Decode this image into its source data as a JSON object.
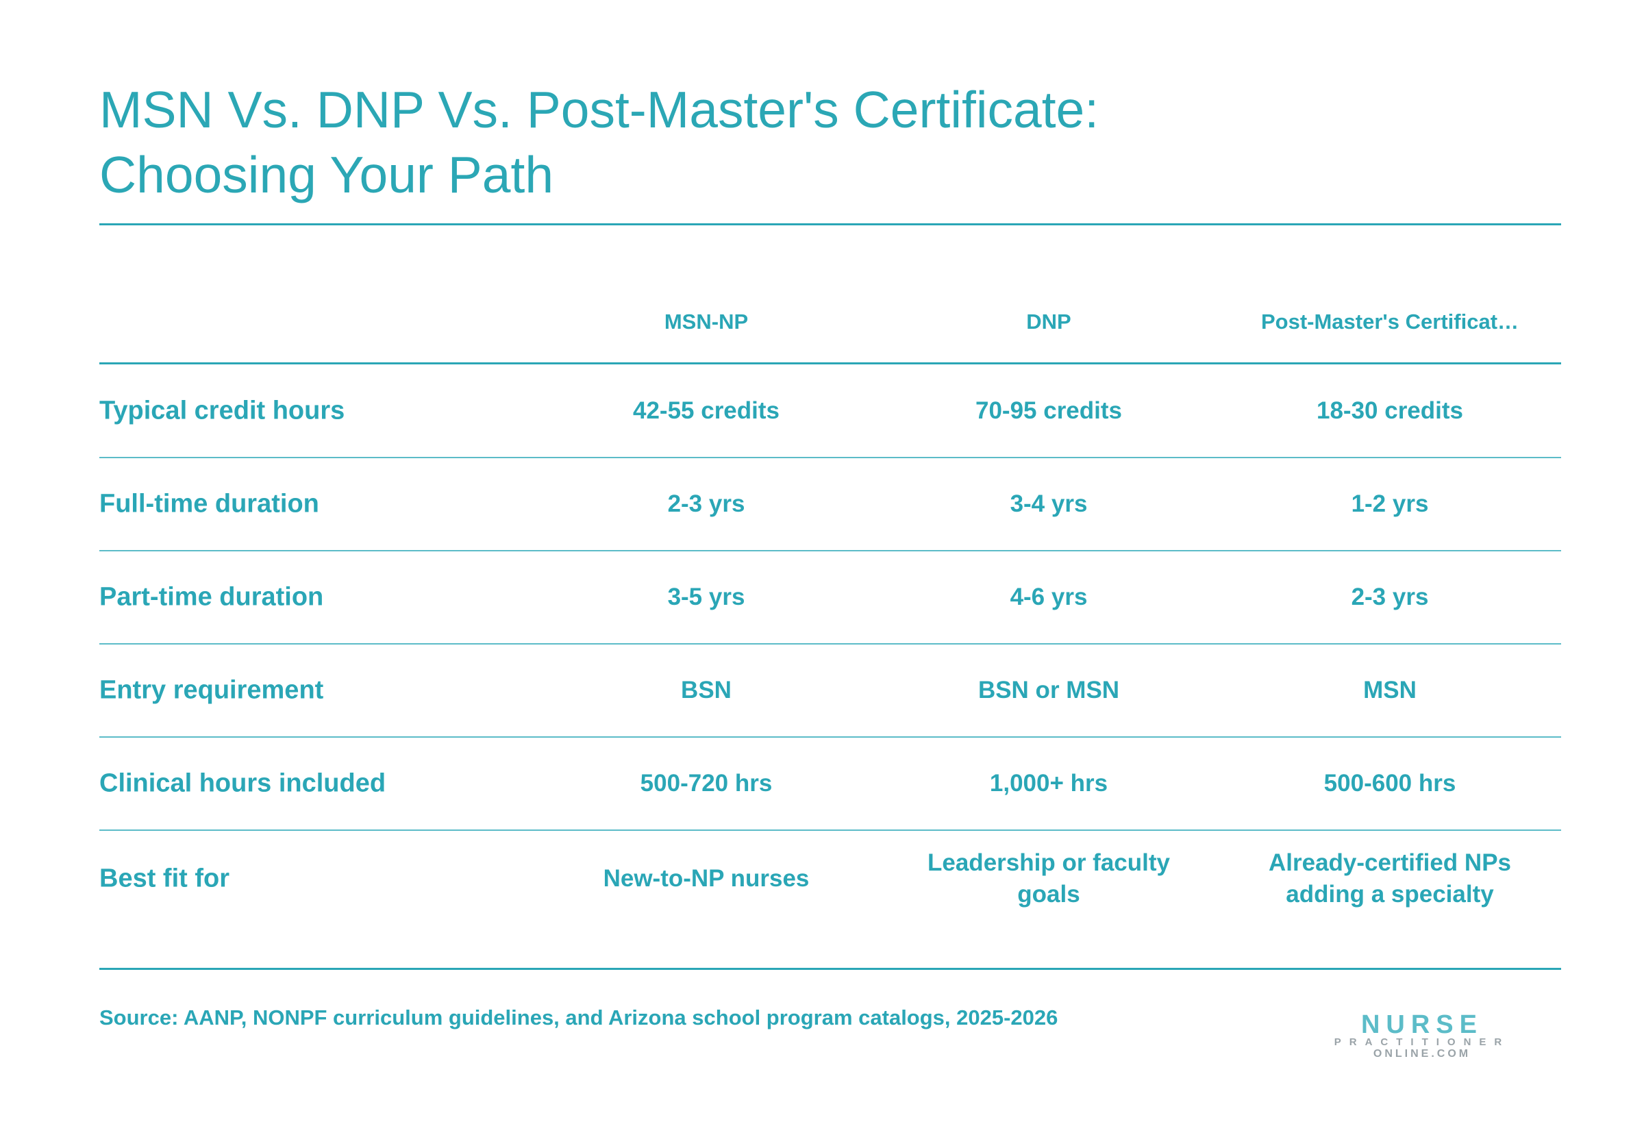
{
  "header": {
    "title_lines": [
      "MSN Vs. DNP Vs. Post-Master's Certificate:",
      "Choosing Your Path"
    ]
  },
  "table": {
    "columns": [
      "MSN-NP",
      "DNP",
      "Post-Master's Certificat…"
    ],
    "rows": [
      {
        "label": "Typical credit hours",
        "cells": [
          "42-55 credits",
          "70-95 credits",
          "18-30 credits"
        ]
      },
      {
        "label": "Full-time duration",
        "cells": [
          "2-3 yrs",
          "3-4 yrs",
          "1-2 yrs"
        ]
      },
      {
        "label": "Part-time duration",
        "cells": [
          "3-5 yrs",
          "4-6 yrs",
          "2-3 yrs"
        ]
      },
      {
        "label": "Entry requirement",
        "cells": [
          "BSN",
          "BSN or MSN",
          "MSN"
        ]
      },
      {
        "label": "Clinical hours included",
        "cells": [
          "500-720 hrs",
          "1,000+ hrs",
          "500-600 hrs"
        ]
      },
      {
        "label": "Best fit for",
        "cells": [
          "New-to-NP nurses",
          "Leadership or faculty goals",
          "Already-certified NPs adding a specialty"
        ]
      }
    ]
  },
  "footer": {
    "source": "Source: AANP, NONPF curriculum guidelines, and Arizona school program catalogs, 2025-2026",
    "logo": [
      "NURSE",
      "PRACTITIONER",
      "ONLINE.COM"
    ]
  }
}
